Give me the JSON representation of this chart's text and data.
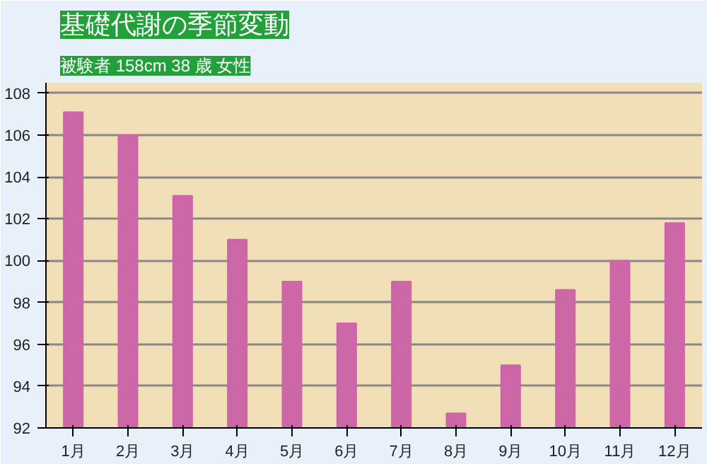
{
  "chart_data": {
    "type": "bar",
    "title": "基礎代謝の季節変動",
    "subtitle": "被験者 158cm 38 歳 女性",
    "categories": [
      "1月",
      "2月",
      "3月",
      "4月",
      "5月",
      "6月",
      "7月",
      "8月",
      "9月",
      "10月",
      "11月",
      "12月"
    ],
    "values": [
      107.1,
      106,
      103.1,
      101,
      99,
      97,
      99,
      92.7,
      95,
      98.6,
      100,
      101.8
    ],
    "color": "#cc66a6",
    "ylim": [
      92,
      108.5
    ],
    "yticks": [
      92,
      94,
      96,
      98,
      100,
      102,
      104,
      106,
      108
    ],
    "grid": "y"
  }
}
